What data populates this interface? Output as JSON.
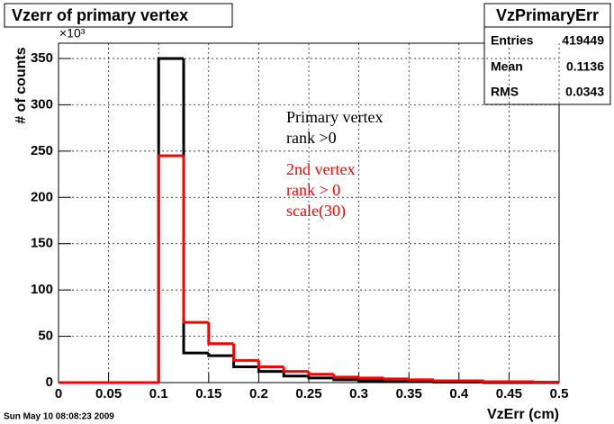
{
  "chart_data": {
    "type": "histogram",
    "title": "Vzerr of primary vertex",
    "x_label": "VzErr (cm)",
    "y_label": "# of counts",
    "y_multiplier": "×10³",
    "timestamp": "Sun May 10 08:08:23 2009",
    "bins": [
      0,
      0.025,
      0.05,
      0.075,
      0.1,
      0.125,
      0.15,
      0.175,
      0.2,
      0.225,
      0.25,
      0.275,
      0.3,
      0.325,
      0.35,
      0.375,
      0.4,
      0.425,
      0.45,
      0.475,
      0.5
    ],
    "series": [
      {
        "name": "Primary vertex rank >0",
        "color": "#000000",
        "values": [
          0,
          0,
          0,
          0,
          350,
          32,
          29,
          17,
          12,
          7,
          5,
          3,
          2,
          1,
          1,
          0.5,
          0.5,
          0,
          0,
          0
        ]
      },
      {
        "name": "2nd vertex rank > 0 scale(30)",
        "color": "#ff0000",
        "values": [
          0,
          0,
          0,
          0,
          245,
          65,
          42,
          24,
          17,
          12,
          9,
          6,
          5,
          4,
          3,
          2,
          2,
          1,
          1,
          0.5
        ]
      }
    ],
    "annotations": [
      {
        "lines": [
          "Primary vertex",
          "rank >0"
        ],
        "color": "#000000"
      },
      {
        "lines": [
          "2nd vertex",
          "rank > 0",
          "scale(30)"
        ],
        "color": "#ff0000"
      }
    ],
    "stats": {
      "title": "VzPrimaryErr",
      "rows": [
        {
          "label": "Entries",
          "value": 419449
        },
        {
          "label": "Mean",
          "value": 0.1136
        },
        {
          "label": "RMS",
          "value": 0.0343
        }
      ]
    },
    "xlim": [
      0,
      0.5
    ],
    "xticks": [
      0,
      0.05,
      0.1,
      0.15,
      0.2,
      0.25,
      0.3,
      0.35,
      0.4,
      0.45,
      0.5
    ],
    "ylim": [
      0,
      350
    ],
    "yticks": [
      0,
      50,
      100,
      150,
      200,
      250,
      300,
      350
    ],
    "grid": true
  }
}
